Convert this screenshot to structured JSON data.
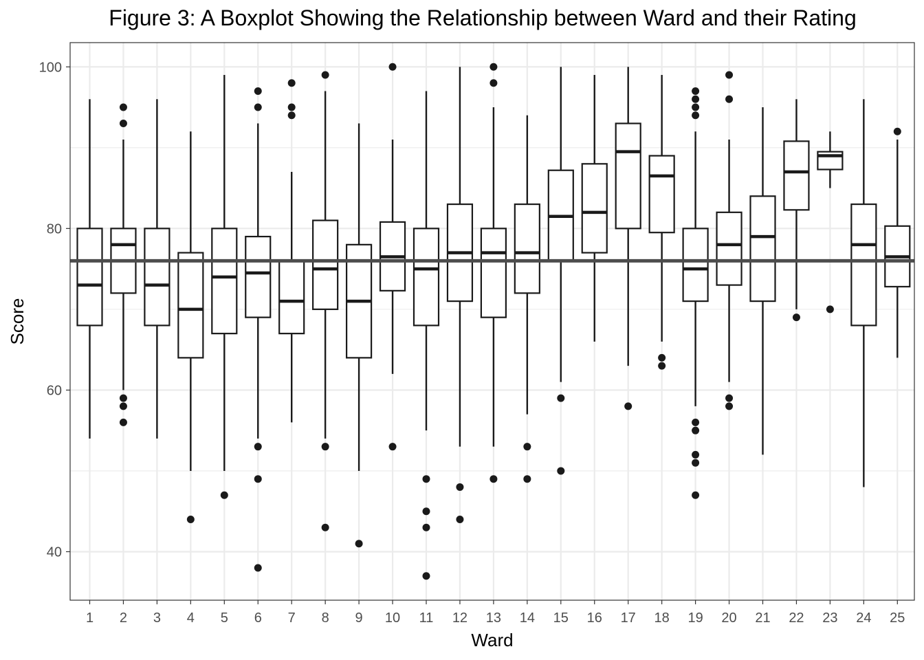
{
  "chart_data": {
    "type": "boxplot",
    "title": "Figure 3: A Boxplot Showing the Relationship between Ward and their Rating",
    "xlabel": "Ward",
    "ylabel": "Score",
    "ylim": [
      34,
      103
    ],
    "yticks": [
      40,
      60,
      80,
      100
    ],
    "categories": [
      "1",
      "2",
      "3",
      "4",
      "5",
      "6",
      "7",
      "8",
      "9",
      "10",
      "11",
      "12",
      "13",
      "14",
      "15",
      "16",
      "17",
      "18",
      "19",
      "20",
      "21",
      "22",
      "23",
      "24",
      "25"
    ],
    "reference_line": 76,
    "boxes": [
      {
        "ward": "1",
        "whisker_low": 54,
        "q1": 68,
        "median": 73,
        "q3": 80,
        "whisker_high": 96,
        "outliers": []
      },
      {
        "ward": "2",
        "whisker_low": 60,
        "q1": 72,
        "median": 78,
        "q3": 80,
        "whisker_high": 91,
        "outliers": [
          95,
          93,
          59,
          58,
          56
        ]
      },
      {
        "ward": "3",
        "whisker_low": 54,
        "q1": 68,
        "median": 73,
        "q3": 80,
        "whisker_high": 96,
        "outliers": []
      },
      {
        "ward": "4",
        "whisker_low": 50,
        "q1": 64,
        "median": 70,
        "q3": 77,
        "whisker_high": 92,
        "outliers": [
          44
        ]
      },
      {
        "ward": "5",
        "whisker_low": 50,
        "q1": 67,
        "median": 74,
        "q3": 80,
        "whisker_high": 99,
        "outliers": [
          47
        ]
      },
      {
        "ward": "6",
        "whisker_low": 54,
        "q1": 69,
        "median": 74.5,
        "q3": 79,
        "whisker_high": 93,
        "outliers": [
          97,
          95,
          53,
          49,
          38
        ]
      },
      {
        "ward": "7",
        "whisker_low": 56,
        "q1": 67,
        "median": 71,
        "q3": 76,
        "whisker_high": 87,
        "outliers": [
          98,
          95,
          94
        ]
      },
      {
        "ward": "8",
        "whisker_low": 54,
        "q1": 70,
        "median": 75,
        "q3": 81,
        "whisker_high": 97,
        "outliers": [
          99,
          53,
          43
        ]
      },
      {
        "ward": "9",
        "whisker_low": 50,
        "q1": 64,
        "median": 71,
        "q3": 78,
        "whisker_high": 93,
        "outliers": [
          41
        ]
      },
      {
        "ward": "10",
        "whisker_low": 62,
        "q1": 72.3,
        "median": 76.5,
        "q3": 80.8,
        "whisker_high": 91,
        "outliers": [
          100,
          53
        ]
      },
      {
        "ward": "11",
        "whisker_low": 55,
        "q1": 68,
        "median": 75,
        "q3": 80,
        "whisker_high": 97,
        "outliers": [
          49,
          45,
          43,
          37
        ]
      },
      {
        "ward": "12",
        "whisker_low": 53,
        "q1": 71,
        "median": 77,
        "q3": 83,
        "whisker_high": 100,
        "outliers": [
          48,
          44
        ]
      },
      {
        "ward": "13",
        "whisker_low": 53,
        "q1": 69,
        "median": 77,
        "q3": 80,
        "whisker_high": 95,
        "outliers": [
          100,
          98,
          49
        ]
      },
      {
        "ward": "14",
        "whisker_low": 57,
        "q1": 72,
        "median": 77,
        "q3": 83,
        "whisker_high": 94,
        "outliers": [
          53,
          49
        ]
      },
      {
        "ward": "15",
        "whisker_low": 61,
        "q1": 76,
        "median": 81.5,
        "q3": 87.2,
        "whisker_high": 100,
        "outliers": [
          59,
          50
        ]
      },
      {
        "ward": "16",
        "whisker_low": 66,
        "q1": 77,
        "median": 82,
        "q3": 88,
        "whisker_high": 99,
        "outliers": []
      },
      {
        "ward": "17",
        "whisker_low": 63,
        "q1": 80,
        "median": 89.5,
        "q3": 93,
        "whisker_high": 100,
        "outliers": [
          58
        ]
      },
      {
        "ward": "18",
        "whisker_low": 66,
        "q1": 79.5,
        "median": 86.5,
        "q3": 89,
        "whisker_high": 99,
        "outliers": [
          64,
          63
        ]
      },
      {
        "ward": "19",
        "whisker_low": 58,
        "q1": 71,
        "median": 75,
        "q3": 80,
        "whisker_high": 92,
        "outliers": [
          97,
          96,
          95,
          94,
          56,
          55,
          52,
          51,
          47
        ]
      },
      {
        "ward": "20",
        "whisker_low": 61,
        "q1": 73,
        "median": 78,
        "q3": 82,
        "whisker_high": 91,
        "outliers": [
          99,
          96,
          59,
          58
        ]
      },
      {
        "ward": "21",
        "whisker_low": 52,
        "q1": 71,
        "median": 79,
        "q3": 84,
        "whisker_high": 95,
        "outliers": []
      },
      {
        "ward": "22",
        "whisker_low": 70,
        "q1": 82.3,
        "median": 87,
        "q3": 90.8,
        "whisker_high": 96,
        "outliers": [
          69
        ]
      },
      {
        "ward": "23",
        "whisker_low": 85,
        "q1": 87.3,
        "median": 89,
        "q3": 89.5,
        "whisker_high": 92,
        "outliers": [
          70
        ]
      },
      {
        "ward": "24",
        "whisker_low": 48,
        "q1": 68,
        "median": 78,
        "q3": 83,
        "whisker_high": 96,
        "outliers": []
      },
      {
        "ward": "25",
        "whisker_low": 64,
        "q1": 72.8,
        "median": 76.5,
        "q3": 80.3,
        "whisker_high": 91,
        "outliers": [
          92
        ]
      }
    ],
    "grid": true,
    "colors": {
      "box_line": "#1a1a1a",
      "grid": "#ebebeb",
      "reference_line": "#4d4d4d",
      "outlier": "#1a1a1a"
    }
  }
}
